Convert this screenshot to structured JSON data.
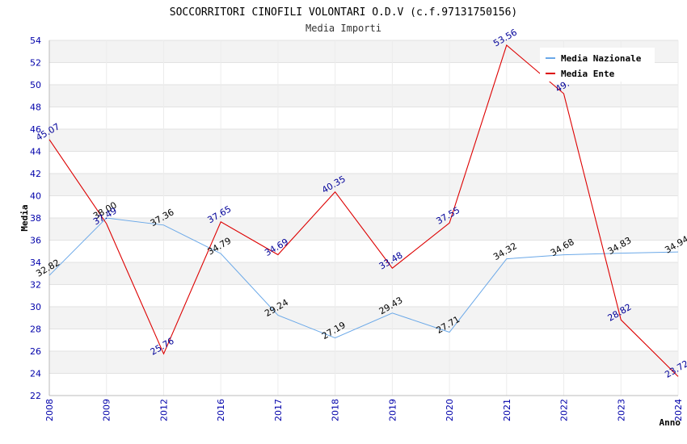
{
  "chart_data": {
    "type": "line",
    "title": "SOCCORRITORI CINOFILI VOLONTARI O.D.V (c.f.97131750156)",
    "subtitle": "Media Importi",
    "xlabel": "Anno",
    "ylabel": "Media",
    "ylim": [
      22,
      54
    ],
    "ytick_step": 2,
    "grid": true,
    "legend_position": "top-right",
    "categories": [
      "2008",
      "2009",
      "2012",
      "2016",
      "2017",
      "2018",
      "2019",
      "2020",
      "2021",
      "2022",
      "2023",
      "2024"
    ],
    "series": [
      {
        "name": "Media Nazionale",
        "color": "#6aa8e8",
        "values": [
          32.82,
          38.0,
          37.36,
          34.79,
          29.24,
          27.19,
          29.43,
          27.71,
          34.32,
          34.68,
          34.83,
          34.94
        ],
        "labels": [
          "32.82",
          "38.00",
          "37.36",
          "34.79",
          "29.24",
          "27.19",
          "29.43",
          "27.71",
          "34.32",
          "34.68",
          "34.83",
          "34.94"
        ]
      },
      {
        "name": "Media Ente",
        "color": "#dd0000",
        "values": [
          45.07,
          37.49,
          25.76,
          37.65,
          34.69,
          40.35,
          33.48,
          37.55,
          53.56,
          49.2,
          28.82,
          23.72
        ],
        "labels": [
          "45.07",
          "37.49",
          "25.76",
          "37.65",
          "34.69",
          "40.35",
          "33.48",
          "37.55",
          "53.56",
          "49.",
          "28.82",
          "23.72"
        ]
      }
    ]
  }
}
